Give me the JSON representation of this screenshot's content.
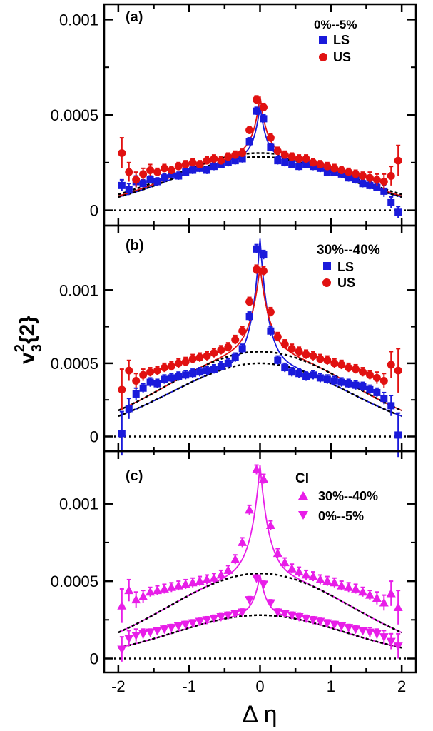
{
  "chart_data": [
    {
      "panel": "(a)",
      "type": "scatter",
      "legend_title": "0%--5%",
      "ylim": [
        -8e-05,
        0.00108
      ],
      "yticks": [
        0,
        0.0005,
        0.001
      ],
      "ytick_labels": [
        "0",
        "0.0005",
        "0.001"
      ],
      "xlim": [
        -2.2,
        2.2
      ],
      "zero_line": true,
      "series": [
        {
          "name": "LS",
          "marker": "square",
          "color": "#1a1adb",
          "x": [
            -1.95,
            -1.85,
            -1.75,
            -1.65,
            -1.55,
            -1.45,
            -1.35,
            -1.25,
            -1.15,
            -1.05,
            -0.95,
            -0.85,
            -0.75,
            -0.65,
            -0.55,
            -0.45,
            -0.35,
            -0.25,
            -0.15,
            -0.05,
            0.05,
            0.15,
            0.25,
            0.35,
            0.45,
            0.55,
            0.65,
            0.75,
            0.85,
            0.95,
            1.05,
            1.15,
            1.25,
            1.35,
            1.45,
            1.55,
            1.65,
            1.75,
            1.85,
            1.95
          ],
          "y": [
            0.00013,
            0.00011,
            0.00015,
            0.00014,
            0.00016,
            0.00015,
            0.00017,
            0.00019,
            0.00018,
            0.0002,
            0.00021,
            0.00022,
            0.00021,
            0.00023,
            0.00024,
            0.00025,
            0.00026,
            0.00027,
            0.00036,
            0.00052,
            0.00048,
            0.00033,
            0.00026,
            0.00025,
            0.00024,
            0.00023,
            0.00024,
            0.00023,
            0.00022,
            0.0002,
            0.0002,
            0.00019,
            0.00017,
            0.00016,
            0.00014,
            0.00013,
            0.00012,
            0.0001,
            4e-05,
            -1e-05
          ],
          "err": [
            3e-05,
            3e-05,
            3e-05,
            2e-05,
            2e-05,
            2e-05,
            2e-05,
            2e-05,
            2e-05,
            2e-05,
            2e-05,
            2e-05,
            2e-05,
            2e-05,
            2e-05,
            2e-05,
            2e-05,
            2e-05,
            2e-05,
            2e-05,
            2e-05,
            2e-05,
            2e-05,
            2e-05,
            2e-05,
            2e-05,
            2e-05,
            2e-05,
            2e-05,
            2e-05,
            2e-05,
            2e-05,
            2e-05,
            2e-05,
            2e-05,
            2e-05,
            2e-05,
            3e-05,
            3e-05,
            3e-05
          ]
        },
        {
          "name": "US",
          "marker": "circle",
          "color": "#e11111",
          "x": [
            -1.95,
            -1.85,
            -1.75,
            -1.65,
            -1.55,
            -1.45,
            -1.35,
            -1.25,
            -1.15,
            -1.05,
            -0.95,
            -0.85,
            -0.75,
            -0.65,
            -0.55,
            -0.45,
            -0.35,
            -0.25,
            -0.15,
            -0.05,
            0.05,
            0.15,
            0.25,
            0.35,
            0.45,
            0.55,
            0.65,
            0.75,
            0.85,
            0.95,
            1.05,
            1.15,
            1.25,
            1.35,
            1.45,
            1.55,
            1.65,
            1.75,
            1.85,
            1.95
          ],
          "y": [
            0.0003,
            0.0002,
            0.00016,
            0.00019,
            0.00021,
            0.0002,
            0.00022,
            0.00021,
            0.00023,
            0.00024,
            0.00025,
            0.00024,
            0.00026,
            0.00027,
            0.00026,
            0.00028,
            0.00029,
            0.0003,
            0.00042,
            0.00058,
            0.00054,
            0.00038,
            0.00031,
            0.00029,
            0.00028,
            0.00027,
            0.00027,
            0.00025,
            0.00024,
            0.00023,
            0.00022,
            0.00021,
            0.0002,
            0.00019,
            0.00018,
            0.00017,
            0.00016,
            0.00015,
            0.00018,
            0.00026
          ],
          "err": [
            8e-05,
            5e-05,
            4e-05,
            3e-05,
            3e-05,
            2e-05,
            2e-05,
            2e-05,
            2e-05,
            2e-05,
            2e-05,
            2e-05,
            2e-05,
            2e-05,
            2e-05,
            2e-05,
            2e-05,
            2e-05,
            2e-05,
            2e-05,
            2e-05,
            2e-05,
            2e-05,
            2e-05,
            2e-05,
            2e-05,
            2e-05,
            2e-05,
            2e-05,
            2e-05,
            2e-05,
            2e-05,
            2e-05,
            2e-05,
            2e-05,
            3e-05,
            3e-05,
            4e-05,
            5e-05,
            8e-05
          ]
        }
      ],
      "fits": [
        {
          "kind": "peak",
          "A": 0.00028,
          "sigma": 1.2,
          "P": 0.00027,
          "w": 0.09,
          "color": "#1a1adb"
        },
        {
          "kind": "peak",
          "A": 0.0003,
          "sigma": 1.2,
          "P": 0.0003,
          "w": 0.1,
          "color": "#e11111"
        },
        {
          "kind": "gauss",
          "A": 0.00028,
          "sigma": 1.2,
          "color": "#000000"
        },
        {
          "kind": "gauss",
          "A": 0.0003,
          "sigma": 1.25,
          "color": "#000000"
        }
      ]
    },
    {
      "panel": "(b)",
      "type": "scatter",
      "legend_title": "30%--40%",
      "ylim": [
        -0.0001,
        0.00144
      ],
      "yticks": [
        0,
        0.0005,
        0.001
      ],
      "ytick_labels": [
        "0",
        "0.0005",
        "0.001"
      ],
      "xlim": [
        -2.2,
        2.2
      ],
      "zero_line": true,
      "ylabel": "v",
      "ylabel_sub": "3",
      "ylabel_sup": "2",
      "ylabel_suffix": "{2}",
      "series": [
        {
          "name": "LS",
          "marker": "square",
          "color": "#1a1adb",
          "x": [
            -1.95,
            -1.85,
            -1.75,
            -1.65,
            -1.55,
            -1.45,
            -1.35,
            -1.25,
            -1.15,
            -1.05,
            -0.95,
            -0.85,
            -0.75,
            -0.65,
            -0.55,
            -0.45,
            -0.35,
            -0.25,
            -0.15,
            -0.05,
            0.05,
            0.15,
            0.25,
            0.35,
            0.45,
            0.55,
            0.65,
            0.75,
            0.85,
            0.95,
            1.05,
            1.15,
            1.25,
            1.35,
            1.45,
            1.55,
            1.65,
            1.75,
            1.85,
            1.95
          ],
          "y": [
            2e-05,
            0.00019,
            0.00029,
            0.00033,
            0.00037,
            0.00036,
            0.00039,
            0.0004,
            0.00041,
            0.00042,
            0.00043,
            0.00044,
            0.00045,
            0.00046,
            0.00048,
            0.0005,
            0.00054,
            0.0006,
            0.00082,
            0.00128,
            0.00124,
            0.00072,
            0.00052,
            0.00047,
            0.00044,
            0.00043,
            0.00041,
            0.00042,
            0.0004,
            0.00039,
            0.00038,
            0.00037,
            0.00036,
            0.00035,
            0.00034,
            0.00032,
            0.0003,
            0.00026,
            0.00021,
            1e-05
          ],
          "err": [
            0.00015,
            7e-05,
            4e-05,
            3e-05,
            3e-05,
            3e-05,
            3e-05,
            3e-05,
            3e-05,
            3e-05,
            3e-05,
            3e-05,
            3e-05,
            3e-05,
            3e-05,
            3e-05,
            3e-05,
            3e-05,
            3e-05,
            3e-05,
            3e-05,
            3e-05,
            3e-05,
            3e-05,
            3e-05,
            3e-05,
            3e-05,
            3e-05,
            3e-05,
            3e-05,
            3e-05,
            3e-05,
            3e-05,
            3e-05,
            3e-05,
            3e-05,
            3e-05,
            4e-05,
            7e-05,
            0.00015
          ]
        },
        {
          "name": "US",
          "marker": "circle",
          "color": "#e11111",
          "x": [
            -1.95,
            -1.85,
            -1.75,
            -1.65,
            -1.55,
            -1.45,
            -1.35,
            -1.25,
            -1.15,
            -1.05,
            -0.95,
            -0.85,
            -0.75,
            -0.65,
            -0.55,
            -0.45,
            -0.35,
            -0.25,
            -0.15,
            -0.05,
            0.05,
            0.15,
            0.25,
            0.35,
            0.45,
            0.55,
            0.65,
            0.75,
            0.85,
            0.95,
            1.05,
            1.15,
            1.25,
            1.35,
            1.45,
            1.55,
            1.65,
            1.75,
            1.85,
            1.95
          ],
          "y": [
            0.00032,
            0.00045,
            0.00038,
            0.00042,
            0.00044,
            0.00045,
            0.00047,
            0.00048,
            0.0005,
            0.00051,
            0.00053,
            0.00054,
            0.00055,
            0.00057,
            0.00059,
            0.00061,
            0.00066,
            0.00072,
            0.00092,
            0.00114,
            0.00113,
            0.00085,
            0.00068,
            0.00063,
            0.0006,
            0.00058,
            0.00056,
            0.00055,
            0.00053,
            0.00052,
            0.0005,
            0.00049,
            0.00047,
            0.00046,
            0.00044,
            0.00042,
            0.0004,
            0.00038,
            0.00049,
            0.00045
          ],
          "err": [
            0.00014,
            7e-05,
            5e-05,
            4e-05,
            3e-05,
            3e-05,
            3e-05,
            3e-05,
            3e-05,
            3e-05,
            3e-05,
            3e-05,
            3e-05,
            3e-05,
            3e-05,
            3e-05,
            3e-05,
            3e-05,
            3e-05,
            3e-05,
            3e-05,
            3e-05,
            3e-05,
            3e-05,
            3e-05,
            3e-05,
            3e-05,
            3e-05,
            3e-05,
            3e-05,
            3e-05,
            3e-05,
            3e-05,
            3e-05,
            3e-05,
            3e-05,
            4e-05,
            5e-05,
            9e-05,
            0.00015
          ]
        }
      ],
      "fits": [
        {
          "kind": "peak",
          "A": 0.0005,
          "sigma": 1.25,
          "P": 0.00085,
          "w": 0.12,
          "color": "#1a1adb"
        },
        {
          "kind": "peak",
          "A": 0.00058,
          "sigma": 1.3,
          "P": 0.00058,
          "w": 0.14,
          "color": "#e11111"
        },
        {
          "kind": "gauss",
          "A": 0.0005,
          "sigma": 1.25,
          "color": "#000000"
        },
        {
          "kind": "gauss",
          "A": 0.00058,
          "sigma": 1.3,
          "color": "#000000"
        }
      ]
    },
    {
      "panel": "(c)",
      "type": "scatter",
      "legend_title": "CI",
      "ylim": [
        -9e-05,
        0.00134
      ],
      "yticks": [
        0,
        0.0005,
        0.001
      ],
      "ytick_labels": [
        "0",
        "0.0005",
        "0.001"
      ],
      "xlim": [
        -2.2,
        2.2
      ],
      "xticks": [
        -2,
        -1,
        0,
        1,
        2
      ],
      "xtick_labels": [
        "-2",
        "-1",
        "0",
        "1",
        "2"
      ],
      "xlabel": "Δ η",
      "zero_line": true,
      "series": [
        {
          "name": "30%--40%",
          "marker": "triangle-up",
          "color": "#e81ee8",
          "x": [
            -1.95,
            -1.85,
            -1.75,
            -1.65,
            -1.55,
            -1.45,
            -1.35,
            -1.25,
            -1.15,
            -1.05,
            -0.95,
            -0.85,
            -0.75,
            -0.65,
            -0.55,
            -0.45,
            -0.35,
            -0.25,
            -0.15,
            -0.05,
            0.05,
            0.15,
            0.25,
            0.35,
            0.45,
            0.55,
            0.65,
            0.75,
            0.85,
            0.95,
            1.05,
            1.15,
            1.25,
            1.35,
            1.45,
            1.55,
            1.65,
            1.75,
            1.85,
            1.95
          ],
          "y": [
            0.00034,
            0.00044,
            0.00038,
            0.0004,
            0.00043,
            0.00044,
            0.00045,
            0.00046,
            0.00047,
            0.00048,
            0.00049,
            0.0005,
            0.00051,
            0.00052,
            0.00054,
            0.00057,
            0.00064,
            0.00075,
            0.00096,
            0.00122,
            0.00116,
            0.00086,
            0.00068,
            0.00062,
            0.00058,
            0.00056,
            0.00054,
            0.00053,
            0.00051,
            0.0005,
            0.00049,
            0.00047,
            0.00046,
            0.00045,
            0.00043,
            0.00041,
            0.00039,
            0.00036,
            0.00042,
            0.00033
          ],
          "err": [
            0.00011,
            7e-05,
            5e-05,
            4e-05,
            3e-05,
            3e-05,
            3e-05,
            3e-05,
            3e-05,
            3e-05,
            3e-05,
            3e-05,
            3e-05,
            3e-05,
            3e-05,
            3e-05,
            3e-05,
            3e-05,
            3e-05,
            3e-05,
            3e-05,
            3e-05,
            3e-05,
            3e-05,
            3e-05,
            3e-05,
            3e-05,
            3e-05,
            3e-05,
            3e-05,
            3e-05,
            3e-05,
            3e-05,
            3e-05,
            3e-05,
            3e-05,
            4e-05,
            5e-05,
            8e-05,
            0.00011
          ]
        },
        {
          "name": "0%--5%",
          "marker": "triangle-down",
          "color": "#e81ee8",
          "x": [
            -1.95,
            -1.85,
            -1.75,
            -1.65,
            -1.55,
            -1.45,
            -1.35,
            -1.25,
            -1.15,
            -1.05,
            -0.95,
            -0.85,
            -0.75,
            -0.65,
            -0.55,
            -0.45,
            -0.35,
            -0.25,
            -0.15,
            -0.05,
            0.05,
            0.15,
            0.25,
            0.35,
            0.45,
            0.55,
            0.65,
            0.75,
            0.85,
            0.95,
            1.05,
            1.15,
            1.25,
            1.35,
            1.45,
            1.55,
            1.65,
            1.75,
            1.85,
            1.95
          ],
          "y": [
            6e-05,
            0.00013,
            0.00015,
            0.00016,
            0.00017,
            0.00018,
            0.00019,
            0.0002,
            0.00021,
            0.00022,
            0.00023,
            0.00024,
            0.00025,
            0.00026,
            0.00027,
            0.00028,
            0.00029,
            0.0003,
            0.00038,
            0.00052,
            0.00048,
            0.00036,
            0.0003,
            0.00029,
            0.00028,
            0.00027,
            0.00026,
            0.00025,
            0.00024,
            0.00023,
            0.00022,
            0.00021,
            0.0002,
            0.00019,
            0.00018,
            0.00017,
            0.00016,
            0.00014,
            0.00011,
            8e-05
          ],
          "err": [
            8e-05,
            5e-05,
            4e-05,
            3e-05,
            2e-05,
            2e-05,
            2e-05,
            2e-05,
            2e-05,
            2e-05,
            2e-05,
            2e-05,
            2e-05,
            2e-05,
            2e-05,
            2e-05,
            2e-05,
            2e-05,
            2e-05,
            2e-05,
            2e-05,
            2e-05,
            2e-05,
            2e-05,
            2e-05,
            2e-05,
            2e-05,
            2e-05,
            2e-05,
            2e-05,
            2e-05,
            2e-05,
            2e-05,
            2e-05,
            2e-05,
            3e-05,
            3e-05,
            4e-05,
            5e-05,
            8e-05
          ]
        }
      ],
      "fits": [
        {
          "kind": "peak",
          "A": 0.00055,
          "sigma": 1.3,
          "P": 0.0007,
          "w": 0.13,
          "color": "#e81ee8"
        },
        {
          "kind": "peak",
          "A": 0.00028,
          "sigma": 1.2,
          "P": 0.00026,
          "w": 0.1,
          "color": "#e81ee8"
        },
        {
          "kind": "gauss",
          "A": 0.00055,
          "sigma": 1.3,
          "color": "#000000"
        },
        {
          "kind": "gauss",
          "A": 0.00028,
          "sigma": 1.2,
          "color": "#000000"
        }
      ]
    }
  ]
}
